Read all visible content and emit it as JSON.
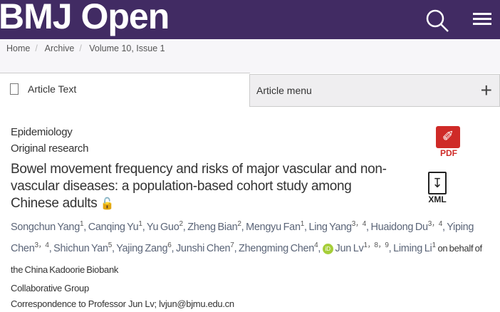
{
  "header": {
    "logo": "BMJ Open",
    "brand_color": "#412b63",
    "search_icon": "search-icon",
    "menu_icon": "hamburger-menu-icon"
  },
  "breadcrumb": [
    "Home",
    "Archive",
    "Volume 10, Issue 1"
  ],
  "tabs": {
    "article_text": "Article Text",
    "article_menu": "Article menu"
  },
  "article": {
    "category": "Epidemiology",
    "type": "Original research",
    "title": "Bowel movement frequency and risks of major vascular and non-vascular diseases: a population-based cohort study among Chinese adults",
    "downloads": {
      "pdf": "PDF",
      "xml": "XML"
    },
    "authors": [
      {
        "name": "Songchun Yang",
        "aff": "1"
      },
      {
        "name": "Canqing Yu",
        "aff": "1"
      },
      {
        "name": "Yu Guo",
        "aff": "2"
      },
      {
        "name": "Zheng Bian",
        "aff": "2"
      },
      {
        "name": "Mengyu Fan",
        "aff": "1"
      },
      {
        "name": "Ling Yang",
        "aff": "3，4"
      },
      {
        "name": "Huaidong Du",
        "aff": "3，4"
      },
      {
        "name": "Yiping Chen",
        "aff": "3，4"
      },
      {
        "name": "Shichun Yan",
        "aff": "5"
      },
      {
        "name": "Yajing Zang",
        "aff": "6"
      },
      {
        "name": "Junshi Chen",
        "aff": "7"
      },
      {
        "name": "Zhengming Chen",
        "aff": "4"
      },
      {
        "name": "Jun Lv",
        "aff": "1，8，9"
      },
      {
        "name": "Liming Li",
        "aff": "1"
      }
    ],
    "orcid": "iD",
    "on_behalf": "on behalf of the China Kadoorie Biobank",
    "collab": "Collaborative Group",
    "correspondence": "Correspondence to Professor Jun Lv; lvjun@bjmu.edu.cn"
  }
}
